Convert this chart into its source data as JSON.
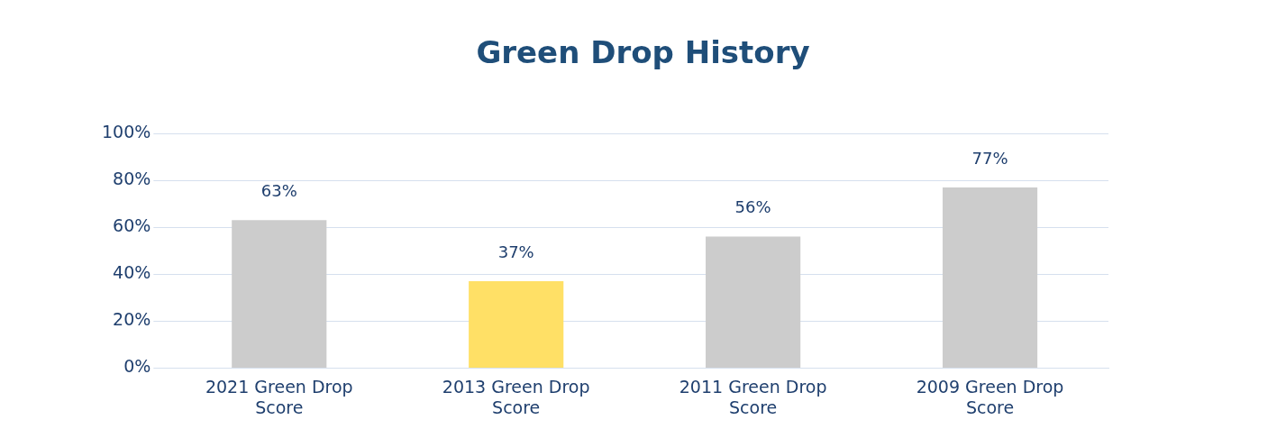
{
  "chart_data": {
    "type": "bar",
    "title": "Green Drop History",
    "categories": [
      "2021 Green Drop Score",
      "2013 Green Drop Score",
      "2011 Green Drop Score",
      "2009 Green Drop Score"
    ],
    "values": [
      63,
      37,
      56,
      77
    ],
    "colors": [
      "#cccccc",
      "#ffe066",
      "#cccccc",
      "#cccccc"
    ],
    "value_labels": [
      "63%",
      "37%",
      "56%",
      "77%"
    ],
    "ylim": [
      0,
      100
    ],
    "yticks": [
      {
        "value": 0,
        "label": "0%"
      },
      {
        "value": 20,
        "label": "20%"
      },
      {
        "value": 40,
        "label": "40%"
      },
      {
        "value": 60,
        "label": "60%"
      },
      {
        "value": 80,
        "label": "80%"
      },
      {
        "value": 100,
        "label": "100%"
      }
    ],
    "grid": "y"
  }
}
